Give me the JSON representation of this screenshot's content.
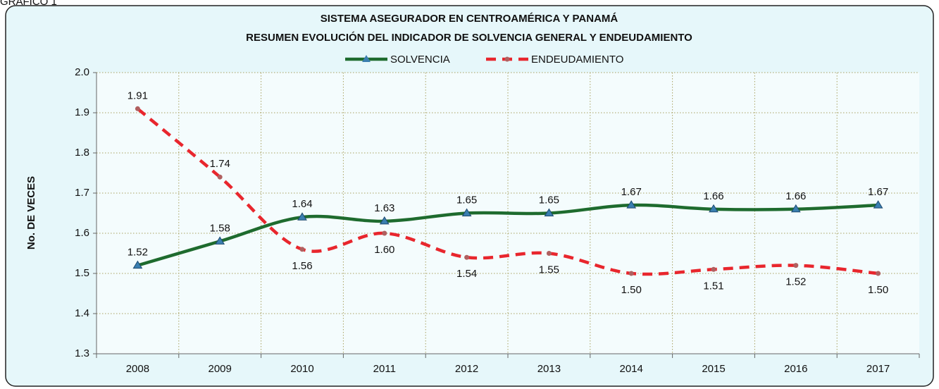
{
  "chart_data": {
    "type": "line",
    "caption": "GRÁFICO 1",
    "title": "SISTEMA ASEGURADOR EN CENTROAMÉRICA Y PANAMÁ",
    "subtitle": "RESUMEN EVOLUCIÓN DEL INDICADOR DE SOLVENCIA GENERAL Y ENDEUDAMIENTO",
    "y_label": "No. DE VECES",
    "categories": [
      "2008",
      "2009",
      "2010",
      "2011",
      "2012",
      "2013",
      "2014",
      "2015",
      "2016",
      "2017"
    ],
    "series": [
      {
        "name": "SOLVENCIA",
        "color": "#1e6b2e",
        "marker_color": "#3a7fb0",
        "dash": false,
        "label_position": "above",
        "values": [
          1.52,
          1.58,
          1.64,
          1.63,
          1.65,
          1.65,
          1.67,
          1.66,
          1.66,
          1.67
        ],
        "value_labels": [
          "1.52",
          "1.58",
          "1.64",
          "1.63",
          "1.65",
          "1.65",
          "1.67",
          "1.66",
          "1.66",
          "1.67"
        ]
      },
      {
        "name": "ENDEUDAMIENTO",
        "color": "#e8262d",
        "marker_color": "#b06060",
        "dash": true,
        "label_position": "mixed",
        "values": [
          1.91,
          1.74,
          1.56,
          1.6,
          1.54,
          1.55,
          1.5,
          1.51,
          1.52,
          1.5
        ],
        "value_labels": [
          "1.91",
          "1.74",
          "1.56",
          "1.60",
          "1.54",
          "1.55",
          "1.50",
          "1.51",
          "1.52",
          "1.50"
        ]
      }
    ],
    "ylim": [
      1.3,
      2.0
    ],
    "yticks": [
      1.3,
      1.4,
      1.5,
      1.6,
      1.7,
      1.8,
      1.9,
      {
        "value": 2.0,
        "label": "2.0"
      }
    ],
    "grid": true,
    "legend": "top",
    "smooth": true
  }
}
